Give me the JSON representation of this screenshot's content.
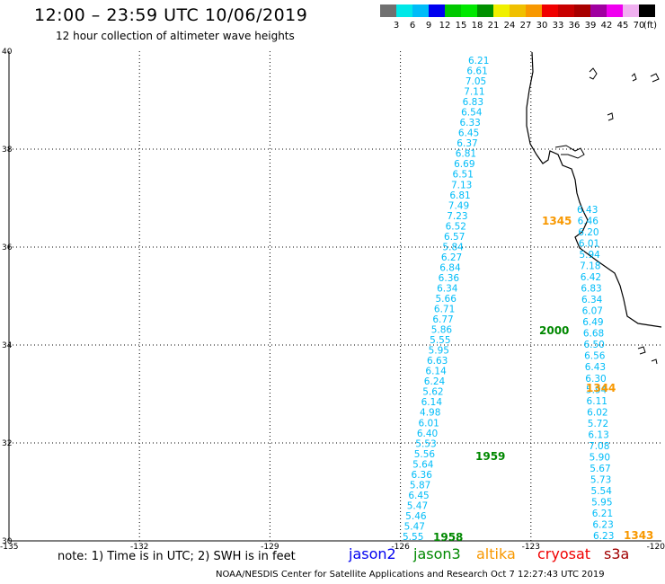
{
  "header": {
    "title": "12:00 – 23:59 UTC 10/06/2019",
    "subtitle": "12 hour collection of altimeter wave heights"
  },
  "colorbar": {
    "colors": [
      "#707070",
      "#00e8e8",
      "#00bcf8",
      "#0000f0",
      "#00c800",
      "#00e800",
      "#009000",
      "#f0f000",
      "#f0c000",
      "#f89800",
      "#f00000",
      "#c80000",
      "#a80000",
      "#a000a0",
      "#f000f0",
      "#f0b0f0",
      "#000000"
    ],
    "ticks": [
      "3",
      "6",
      "9",
      "12",
      "15",
      "18",
      "21",
      "24",
      "27",
      "30",
      "33",
      "36",
      "39",
      "42",
      "45",
      "70"
    ],
    "unit": "(ft)"
  },
  "axes": {
    "lat_labels": [
      "40",
      "38",
      "36",
      "34",
      "32",
      "30"
    ],
    "lon_labels": [
      "-135",
      "-132",
      "-129",
      "-126",
      "-123",
      "-120"
    ],
    "lat_range": [
      30,
      40
    ],
    "lon_range": [
      -135,
      -120
    ]
  },
  "tracks": {
    "track_a": {
      "color": "#00bcf8",
      "values": [
        "6.21",
        "6.61",
        "7.05",
        "7.11",
        "6.83",
        "6.54",
        "6.33",
        "6.45",
        "6.37",
        "6.81",
        "6.69",
        "6.51",
        "7.13",
        "6.81",
        "7.49",
        "7.23",
        "6.52",
        "6.57",
        "5.84",
        "6.27",
        "6.84",
        "6.36",
        "6.34",
        "5.66",
        "6.71",
        "6.77",
        "5.86",
        "5.55",
        "5.95",
        "6.63",
        "6.14",
        "6.24",
        "5.62",
        "6.14",
        "4.98",
        "6.01",
        "6.40",
        "5.53",
        "5.56",
        "5.64",
        "6.36",
        "5.87",
        "6.45",
        "5.47",
        "5.46",
        "5.47",
        "5.55"
      ]
    },
    "track_b": {
      "color": "#00bcf8",
      "values": [
        "6.43",
        "6.46",
        "6.20",
        "6.01",
        "5.94",
        "7.18",
        "6.42",
        "6.83",
        "6.34",
        "6.07",
        "6.49",
        "6.68",
        "6.50",
        "6.56",
        "6.43",
        "6.30",
        "5.94",
        "6.11",
        "6.02",
        "5.72",
        "6.13",
        "7.08",
        "5.90",
        "5.67",
        "5.73",
        "5.54",
        "5.95",
        "6.21",
        "6.23",
        "6.23"
      ]
    }
  },
  "time_labels": [
    {
      "text": "1345",
      "color": "#f89800"
    },
    {
      "text": "2000",
      "color": "#008800"
    },
    {
      "text": "1344",
      "color": "#f89800"
    },
    {
      "text": "1959",
      "color": "#008800"
    },
    {
      "text": "1958",
      "color": "#008800"
    },
    {
      "text": "1343",
      "color": "#f89800"
    }
  ],
  "note": "note:  1) Time is in UTC;  2) SWH is in feet",
  "legend": [
    {
      "name": "jason2",
      "color": "#0000f0"
    },
    {
      "name": "jason3",
      "color": "#008800"
    },
    {
      "name": "altika",
      "color": "#f89800"
    },
    {
      "name": "cryosat",
      "color": "#f00000"
    },
    {
      "name": "s3a",
      "color": "#a00000"
    }
  ],
  "footer": "NOAA/NESDIS Center for Satellite Applications and Research    Oct  7 12:27:43 UTC 2019"
}
